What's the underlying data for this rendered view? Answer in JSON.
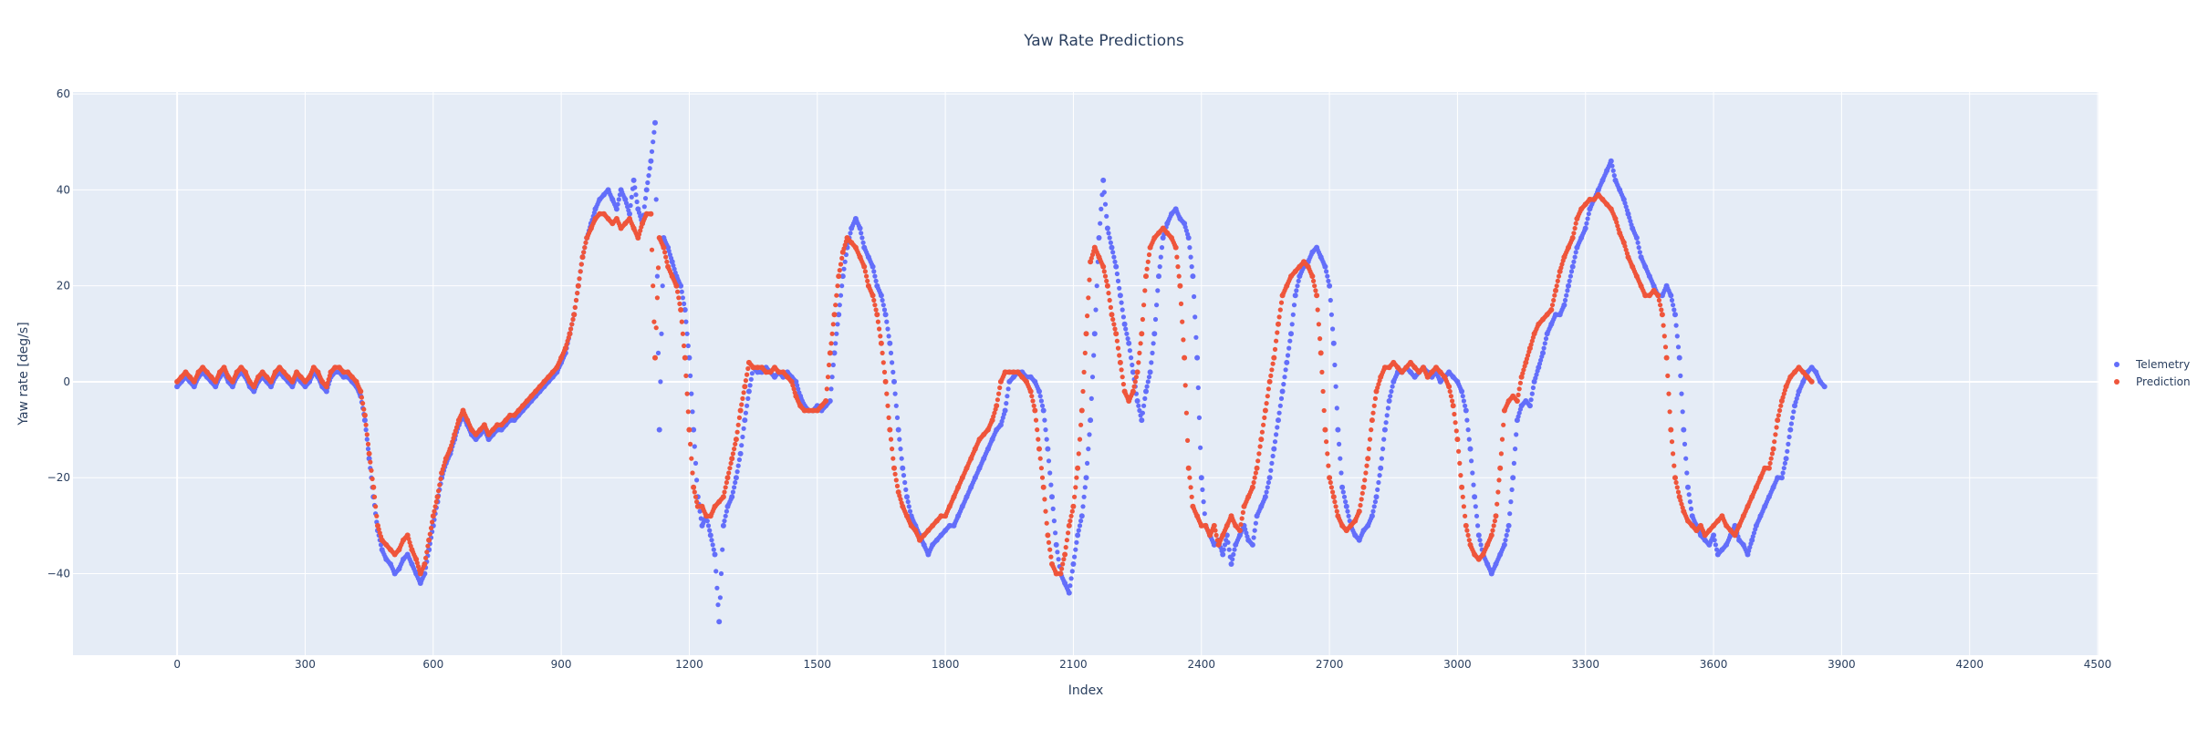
{
  "chart_data": {
    "type": "scatter",
    "title": "Yaw Rate Predictions",
    "xlabel": "Index",
    "ylabel": "Yaw rate [deg/s]",
    "xlim": [
      -244,
      4502
    ],
    "ylim": [
      -57,
      60.4
    ],
    "grid": true,
    "legend_position": "right",
    "x_ticks": [
      0,
      300,
      600,
      900,
      1200,
      1500,
      1800,
      2100,
      2400,
      2700,
      3000,
      3300,
      3600,
      3900,
      4200,
      4500
    ],
    "x_tick_labels": [
      "0",
      "300",
      "600",
      "900",
      "1200",
      "1500",
      "1800",
      "2100",
      "2400",
      "2700",
      "3000",
      "3300",
      "3600",
      "3900",
      "4200",
      "4500"
    ],
    "y_ticks": [
      -40,
      -20,
      0,
      20,
      40,
      60
    ],
    "y_tick_labels": [
      "−40",
      "−20",
      "0",
      "20",
      "40",
      "60"
    ],
    "x_step": 10,
    "x_start": 0,
    "series": [
      {
        "name": "Telemetry",
        "color": "#636efa",
        "values": [
          -1,
          0,
          1,
          0,
          -1,
          1,
          2,
          1,
          0,
          -1,
          1,
          2,
          0,
          -1,
          1,
          2,
          1,
          -1,
          -2,
          0,
          1,
          0,
          -1,
          1,
          2,
          1,
          0,
          -1,
          1,
          0,
          -1,
          0,
          2,
          1,
          -1,
          -2,
          1,
          2,
          2,
          1,
          1,
          0,
          -1,
          -3,
          -8,
          -16,
          -24,
          -31,
          -35,
          -37,
          -38,
          -40,
          -39,
          -37,
          -36,
          -38,
          -40,
          -42,
          -40,
          -35,
          -30,
          -25,
          -20,
          -17,
          -15,
          -12,
          -9,
          -7,
          -9,
          -11,
          -12,
          -11,
          -10,
          -12,
          -11,
          -10,
          -10,
          -9,
          -8,
          -8,
          -7,
          -6,
          -5,
          -4,
          -3,
          -2,
          -1,
          0,
          1,
          2,
          4,
          6,
          10,
          14,
          20,
          26,
          30,
          33,
          36,
          38,
          39,
          40,
          38,
          36,
          40,
          38,
          35,
          42,
          36,
          33,
          40,
          46,
          54,
          -10,
          30,
          28,
          25,
          22,
          20,
          15,
          5,
          -10,
          -24,
          -30,
          -28,
          -32,
          -36,
          -50,
          -30,
          -26,
          -24,
          -20,
          -15,
          -8,
          -2,
          3,
          2,
          2,
          3,
          2,
          1,
          2,
          1,
          2,
          1,
          0,
          -3,
          -5,
          -6,
          -6,
          -5,
          -6,
          -5,
          -4,
          6,
          14,
          22,
          28,
          32,
          34,
          32,
          28,
          26,
          24,
          20,
          18,
          14,
          8,
          0,
          -10,
          -18,
          -24,
          -28,
          -30,
          -32,
          -34,
          -36,
          -34,
          -33,
          -32,
          -31,
          -30,
          -30,
          -28,
          -26,
          -24,
          -22,
          -20,
          -18,
          -16,
          -14,
          -12,
          -10,
          -9,
          -6,
          0,
          1,
          2,
          2,
          1,
          1,
          0,
          -2,
          -6,
          -14,
          -24,
          -34,
          -40,
          -42,
          -44,
          -38,
          -32,
          -28,
          -20,
          -8,
          10,
          30,
          42,
          32,
          28,
          24,
          18,
          12,
          8,
          2,
          -4,
          -8,
          -2,
          2,
          10,
          22,
          30,
          33,
          35,
          36,
          34,
          33,
          30,
          22,
          5,
          -20,
          -30,
          -32,
          -34,
          -33,
          -36,
          -32,
          -38,
          -34,
          -32,
          -30,
          -33,
          -34,
          -28,
          -26,
          -24,
          -20,
          -14,
          -8,
          -2,
          4,
          10,
          18,
          22,
          24,
          25,
          27,
          28,
          26,
          24,
          20,
          8,
          -10,
          -22,
          -26,
          -30,
          -32,
          -33,
          -31,
          -30,
          -28,
          -24,
          -18,
          -10,
          -4,
          0,
          2,
          2,
          3,
          2,
          1,
          2,
          3,
          2,
          1,
          2,
          0,
          1,
          2,
          1,
          0,
          -2,
          -6,
          -14,
          -24,
          -32,
          -36,
          -38,
          -40,
          -38,
          -36,
          -34,
          -30,
          -20,
          -8,
          -5,
          -4,
          -5,
          0,
          3,
          6,
          10,
          12,
          14,
          14,
          16,
          20,
          24,
          28,
          30,
          32,
          36,
          38,
          40,
          42,
          44,
          46,
          42,
          40,
          38,
          35,
          32,
          30,
          26,
          24,
          22,
          20,
          18,
          18,
          20,
          18,
          14,
          5,
          -10,
          -22,
          -28,
          -30,
          -32,
          -33,
          -34,
          -32,
          -36,
          -35,
          -34,
          -32,
          -30,
          -33,
          -34,
          -36,
          -33,
          -30,
          -28,
          -26,
          -24,
          -22,
          -20,
          -20,
          -16,
          -10,
          -5,
          -2,
          0,
          2,
          3,
          2,
          0,
          -1
        ]
      },
      {
        "name": "Prediction",
        "color": "#ef553b",
        "values": [
          0,
          1,
          2,
          1,
          0,
          2,
          3,
          2,
          1,
          0,
          2,
          3,
          1,
          0,
          2,
          3,
          2,
          0,
          -1,
          1,
          2,
          1,
          0,
          2,
          3,
          2,
          1,
          0,
          2,
          1,
          0,
          1,
          3,
          2,
          0,
          -1,
          2,
          3,
          3,
          2,
          2,
          1,
          0,
          -2,
          -7,
          -15,
          -22,
          -30,
          -33,
          -34,
          -35,
          -36,
          -35,
          -33,
          -32,
          -35,
          -37,
          -40,
          -38,
          -33,
          -28,
          -24,
          -19,
          -16,
          -14,
          -11,
          -8,
          -6,
          -8,
          -10,
          -11,
          -10,
          -9,
          -11,
          -10,
          -9,
          -9,
          -8,
          -7,
          -7,
          -6,
          -5,
          -4,
          -3,
          -2,
          -1,
          0,
          1,
          2,
          3,
          5,
          7,
          10,
          14,
          20,
          26,
          30,
          32,
          34,
          35,
          35,
          34,
          33,
          34,
          32,
          33,
          34,
          32,
          30,
          33,
          35,
          35,
          5,
          30,
          28,
          24,
          22,
          20,
          15,
          5,
          -10,
          -22,
          -26,
          -26,
          -28,
          -28,
          -26,
          -25,
          -24,
          -20,
          -16,
          -12,
          -6,
          -1,
          4,
          3,
          3,
          3,
          2,
          2,
          3,
          2,
          2,
          1,
          0,
          -3,
          -5,
          -6,
          -6,
          -6,
          -6,
          -5,
          -4,
          6,
          14,
          22,
          27,
          30,
          29,
          28,
          26,
          24,
          20,
          18,
          14,
          8,
          0,
          -10,
          -18,
          -23,
          -26,
          -28,
          -30,
          -31,
          -33,
          -32,
          -31,
          -30,
          -29,
          -28,
          -28,
          -26,
          -24,
          -22,
          -20,
          -18,
          -16,
          -14,
          -12,
          -11,
          -10,
          -8,
          -5,
          0,
          2,
          2,
          2,
          2,
          1,
          0,
          -2,
          -6,
          -14,
          -22,
          -32,
          -38,
          -40,
          -40,
          -36,
          -30,
          -26,
          -18,
          -6,
          10,
          25,
          28,
          26,
          24,
          20,
          14,
          10,
          4,
          -2,
          -4,
          -2,
          2,
          10,
          22,
          28,
          30,
          31,
          32,
          31,
          30,
          28,
          20,
          5,
          -18,
          -26,
          -28,
          -30,
          -30,
          -32,
          -30,
          -34,
          -32,
          -30,
          -28,
          -30,
          -31,
          -26,
          -24,
          -22,
          -18,
          -12,
          -6,
          0,
          5,
          12,
          18,
          20,
          22,
          23,
          24,
          25,
          24,
          22,
          18,
          6,
          -10,
          -20,
          -24,
          -28,
          -30,
          -31,
          -30,
          -29,
          -27,
          -22,
          -16,
          -8,
          -2,
          1,
          3,
          3,
          4,
          3,
          2,
          3,
          4,
          3,
          2,
          3,
          1,
          2,
          3,
          2,
          1,
          -1,
          -5,
          -12,
          -22,
          -30,
          -34,
          -36,
          -37,
          -36,
          -34,
          -32,
          -28,
          -18,
          -6,
          -4,
          -3,
          -4,
          1,
          4,
          7,
          10,
          12,
          13,
          14,
          15,
          19,
          23,
          26,
          28,
          30,
          34,
          36,
          37,
          38,
          38,
          39,
          38,
          37,
          36,
          34,
          31,
          29,
          26,
          24,
          22,
          20,
          18,
          18,
          19,
          18,
          14,
          5,
          -10,
          -20,
          -24,
          -27,
          -29,
          -30,
          -31,
          -30,
          -32,
          -31,
          -30,
          -29,
          -28,
          -30,
          -31,
          -32,
          -30,
          -28,
          -26,
          -24,
          -22,
          -20,
          -18,
          -18,
          -14,
          -8,
          -4,
          -1,
          1,
          2,
          3,
          2,
          1,
          0
        ]
      }
    ]
  }
}
